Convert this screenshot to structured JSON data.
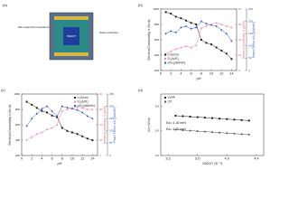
{
  "diagram": {
    "panel_label": "(a)",
    "labels": [
      "Silk coated the transistors",
      "Glass substrate",
      "PEDOT"
    ]
  },
  "chart_data": [
    {
      "type": "line",
      "panel_label": "(b)",
      "x_label": "pH",
      "y_label": "Electrical Conductivity, σ (S/cm)",
      "y2_label": "Seebeck Coefficient, S (μV/K)",
      "y3_label": "Power Factor, σS² (μW/mK²)",
      "x": [
        1,
        2,
        3,
        4,
        5,
        6,
        7,
        8,
        9,
        10,
        11,
        12,
        13,
        14
      ],
      "xlim": [
        0,
        15
      ],
      "xticks": [
        0,
        2,
        4,
        6,
        8,
        10,
        12,
        14
      ],
      "ylim": [
        200,
        1000
      ],
      "yticks": [
        200,
        400,
        600,
        800,
        1000
      ],
      "y2lim": [
        0,
        80
      ],
      "y2ticks": [
        0,
        20,
        40,
        60,
        80
      ],
      "y3lim": [
        0,
        250
      ],
      "y3ticks": [
        0,
        50,
        100,
        150,
        200,
        250
      ],
      "legend": "lower left",
      "series": [
        {
          "name": "σ (S/cm)",
          "color": "#222222",
          "marker": "square",
          "axis": "y",
          "values": [
            960,
            940,
            900,
            880,
            850,
            820,
            800,
            600,
            560,
            540,
            500,
            460,
            420,
            350
          ]
        },
        {
          "name": "S (μV/K)",
          "color": "#f08aa0",
          "marker": "triangle",
          "axis": "y2",
          "values": [
            22,
            25,
            28,
            30,
            32,
            30,
            33,
            55,
            58,
            60,
            62,
            60,
            58,
            56
          ]
        },
        {
          "name": "σS² (μW/mK²)",
          "color": "#3355cc",
          "marker": "diamond",
          "axis": "y3",
          "values": [
            150,
            160,
            155,
            175,
            180,
            170,
            175,
            200,
            190,
            185,
            180,
            165,
            150,
            120
          ]
        }
      ]
    },
    {
      "type": "line",
      "panel_label": "(c)",
      "x_label": "pH",
      "y_label": "Electrical Conductivity, σ (S/cm)",
      "y2_label": "Seebeck Coefficient, S (μV/K)",
      "y3_label": "Power Factor, σS² (μW/mK²)",
      "x": [
        1,
        2,
        3,
        4,
        5,
        6,
        7,
        8,
        9,
        10,
        11,
        12,
        13,
        14
      ],
      "xlim": [
        0,
        15
      ],
      "xticks": [
        0,
        2,
        4,
        6,
        8,
        10,
        12,
        14
      ],
      "ylim": [
        200,
        1000
      ],
      "yticks": [
        200,
        400,
        600,
        800,
        1000
      ],
      "y2lim": [
        0,
        80
      ],
      "y2ticks": [
        0,
        20,
        40,
        60,
        80
      ],
      "y3lim": [
        0,
        250
      ],
      "y3ticks": [
        0,
        50,
        100,
        150,
        200,
        250
      ],
      "legend": "upper right",
      "series": [
        {
          "name": "σ (S/cm)",
          "color": "#222222",
          "marker": "square",
          "axis": "y",
          "values": [
            900,
            860,
            820,
            780,
            760,
            720,
            700,
            560,
            520,
            500,
            480,
            450,
            420,
            400
          ]
        },
        {
          "name": "S (μV/K)",
          "color": "#f08aa0",
          "marker": "triangle",
          "axis": "y2",
          "values": [
            20,
            24,
            28,
            30,
            34,
            36,
            40,
            58,
            60,
            62,
            63,
            62,
            60,
            60
          ]
        },
        {
          "name": "σS² (μW/mK²)",
          "color": "#3355cc",
          "marker": "diamond",
          "axis": "y3",
          "values": [
            120,
            150,
            170,
            190,
            200,
            180,
            160,
            200,
            195,
            190,
            185,
            175,
            160,
            150
          ]
        }
      ]
    },
    {
      "type": "line",
      "panel_label": "(d)",
      "x_label": "1000/T (K⁻¹)",
      "y_label": "ln σ (S/cm)",
      "x": [
        3.3,
        3.4,
        3.5,
        3.6,
        3.7,
        3.8,
        3.9,
        4.0,
        4.1,
        4.2,
        4.3
      ],
      "xlim": [
        3.1,
        4.5
      ],
      "xticks": [
        {
          "value": 3.2,
          "label": "3.2"
        },
        {
          "value": 3.6,
          "label": "3.6"
        },
        {
          "value": 4.0,
          "label": "4.0"
        },
        {
          "value": 4.4,
          "label": "4.4"
        }
      ],
      "ylim": [
        4.0,
        6.5
      ],
      "yticks": [
        {
          "value": 4.0,
          "label": "4.0"
        },
        {
          "value": 5.0,
          "label": "5.0"
        },
        {
          "value": 6.0,
          "label": "6.0"
        }
      ],
      "legend": "upper left",
      "annotations": [
        "Ea= 4.18 meV",
        "Ea= 4.75 meV"
      ],
      "series": [
        {
          "name": "VVPP",
          "color": "#222222",
          "marker": "square",
          "axis": "y",
          "values": [
            5.62,
            5.6,
            5.58,
            5.56,
            5.54,
            5.52,
            5.5,
            5.48,
            5.46,
            5.44,
            5.42
          ]
        },
        {
          "name": "CP",
          "color": "#555555",
          "marker": "circle",
          "axis": "y",
          "values": [
            5.05,
            5.03,
            5.01,
            4.99,
            4.97,
            4.95,
            4.93,
            4.91,
            4.89,
            4.87,
            4.85
          ]
        }
      ]
    }
  ]
}
